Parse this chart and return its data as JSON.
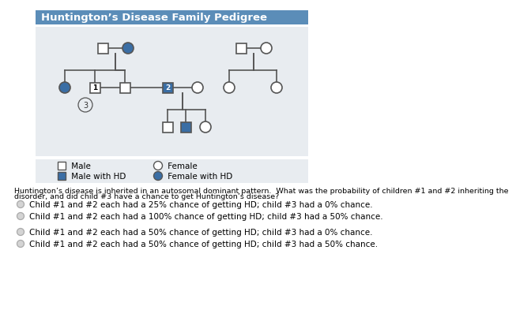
{
  "title": "Huntington’s Disease Family Pedigree",
  "title_bg": "#5b8db8",
  "title_fg": "white",
  "pedigree_bg": "#e8ecf0",
  "legend_bg": "#e8ecf0",
  "hd_color": "#3a6ea5",
  "normal_color": "white",
  "edge_color": "#555555",
  "question_line1": "Huntington’s disease is inherited in an autosomal dominant pattern.  What was the probability of children #1 and #2 inheriting the",
  "question_line2": "disorder, and did child #3 have a chance to get Huntington’s disease?",
  "answers": [
    "Child #1 and #2 each had a 25% chance of getting HD; child #3 had a 0% chance.",
    "Child #1 and #2 each had a 100% chance of getting HD; child #3 had a 50% chance.",
    "Child #1 and #2 each had a 50% chance of getting HD; child #3 had a 0% chance.",
    "Child #1 and #2 each had a 50% chance of getting HD; child #3 had a 50% chance."
  ],
  "answer_font_size": 7.5,
  "question_font_size": 6.8
}
